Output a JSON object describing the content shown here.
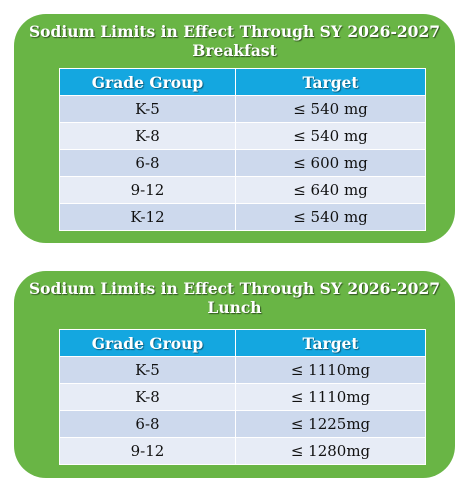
{
  "breakfast": {
    "title_line1": "Sodium Limits in Effect Through SY 2026-2027",
    "title_line2": "Breakfast",
    "header_grade": "Grade Group",
    "header_target": "Target",
    "rows": [
      {
        "grade": "K-5",
        "target": "≤ 540 mg"
      },
      {
        "grade": "K-8",
        "target": "≤ 540 mg"
      },
      {
        "grade": "6-8",
        "target": "≤ 600 mg"
      },
      {
        "grade": "9-12",
        "target": "≤ 640 mg"
      },
      {
        "grade": "K-12",
        "target": "≤ 540 mg"
      }
    ]
  },
  "lunch": {
    "title_line1": "Sodium Limits in Effect Through SY 2026-2027",
    "title_line2": "Lunch",
    "header_grade": "Grade Group",
    "header_target": "Target",
    "rows": [
      {
        "grade": "K-5",
        "target": "≤ 1110mg"
      },
      {
        "grade": "K-8",
        "target": "≤ 1110mg"
      },
      {
        "grade": "6-8",
        "target": "≤ 1225mg"
      },
      {
        "grade": "9-12",
        "target": "≤ 1280mg"
      }
    ]
  },
  "colors": {
    "card_green": "#69b545",
    "header_blue": "#14a7e0",
    "row_dark": "#cdd9ed",
    "row_light": "#e7ecf6"
  }
}
